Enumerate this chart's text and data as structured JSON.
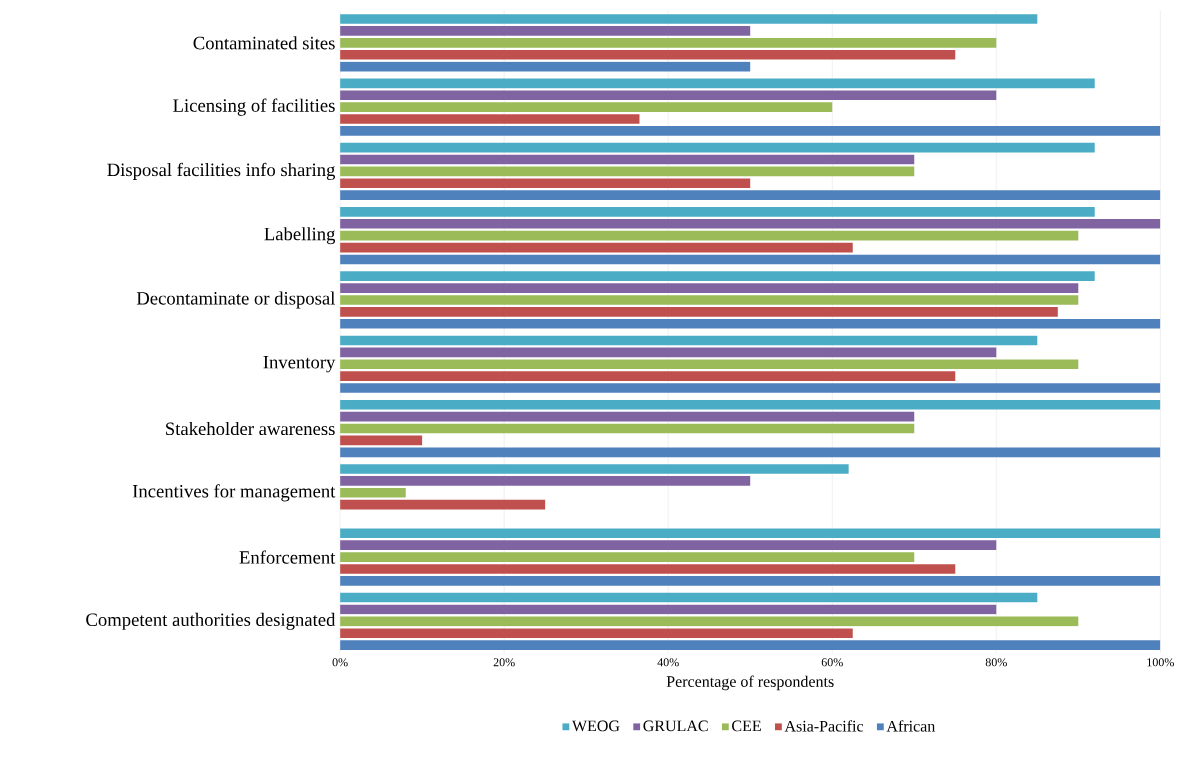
{
  "chart_data": {
    "type": "bar",
    "orientation": "horizontal",
    "xlabel": "Percentage of respondents",
    "categories": [
      "Contaminated sites",
      "Licensing of facilities",
      "Disposal facilities info sharing",
      "Labelling",
      "Decontaminate or disposal",
      "Inventory",
      "Stakeholder awareness",
      "Incentives for management",
      "Enforcement",
      "Competent authorities designated"
    ],
    "series": [
      {
        "name": "WEOG",
        "color": "#4bacc6",
        "values": [
          85,
          92,
          92,
          92,
          92,
          85,
          100,
          62,
          100,
          85
        ]
      },
      {
        "name": "GRULAC",
        "color": "#8064a2",
        "values": [
          50,
          80,
          70,
          100,
          90,
          80,
          70,
          50,
          80,
          80
        ]
      },
      {
        "name": "CEE",
        "color": "#9bbb59",
        "values": [
          80,
          60,
          70,
          90,
          90,
          90,
          70,
          8,
          70,
          90
        ]
      },
      {
        "name": "Asia-Pacific",
        "color": "#c0504d",
        "values": [
          75,
          36.5,
          50,
          62.5,
          87.5,
          75,
          10,
          25,
          75,
          62.5
        ]
      },
      {
        "name": "African",
        "color": "#4f81bd",
        "values": [
          50,
          100,
          100,
          100,
          100,
          100,
          100,
          null,
          100,
          100
        ]
      }
    ],
    "xlim": [
      0,
      100
    ],
    "xticks": [
      {
        "value": 0,
        "label": "0%"
      },
      {
        "value": 20,
        "label": "20%"
      },
      {
        "value": 40,
        "label": "40%"
      },
      {
        "value": 60,
        "label": "60%"
      },
      {
        "value": 80,
        "label": "80%"
      },
      {
        "value": 100,
        "label": "100%"
      }
    ],
    "grid": "x",
    "legend": "bottom"
  }
}
